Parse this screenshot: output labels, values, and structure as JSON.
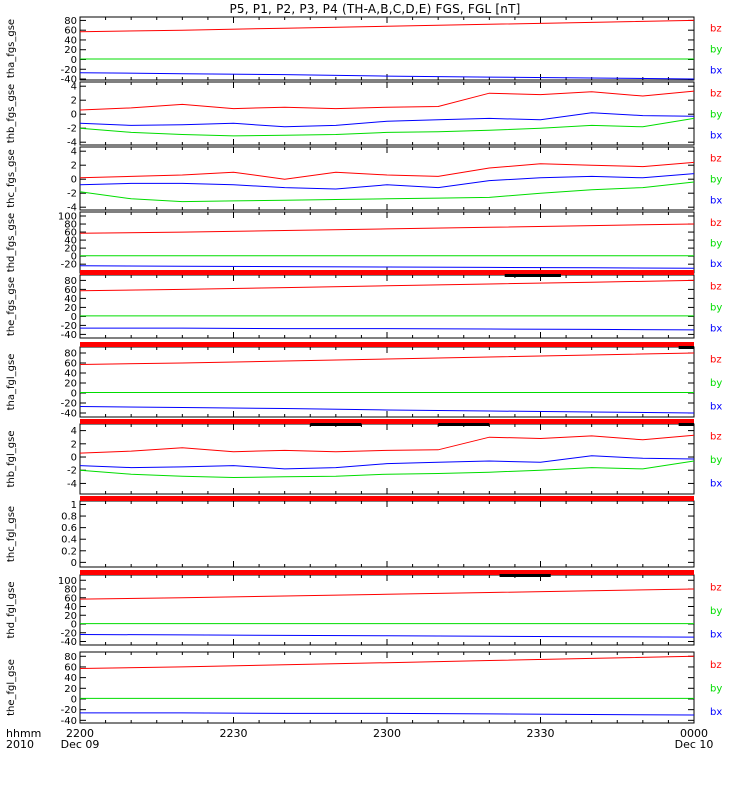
{
  "title": "P5, P1, P2, P3, P4 (TH-A,B,C,D,E) FGS, FGL [nT]",
  "colors": {
    "bz": "#ff0000",
    "by": "#00dd00",
    "bx": "#0000ff",
    "flag": "#ff0000",
    "bar": "#000000"
  },
  "time_axis": {
    "corner_labels": [
      "hhmm",
      "2010"
    ],
    "ticks": [
      {
        "t": 0,
        "label": "2200",
        "sub": "Dec 09"
      },
      {
        "t": 30,
        "label": "2230",
        "sub": ""
      },
      {
        "t": 60,
        "label": "2300",
        "sub": ""
      },
      {
        "t": 90,
        "label": "2330",
        "sub": ""
      },
      {
        "t": 120,
        "label": "0000",
        "sub": "Dec 10"
      }
    ],
    "range_minutes": [
      0,
      120
    ]
  },
  "chart_data": [
    {
      "type": "line",
      "ylabel": "tha_fgs_gse",
      "ylim": [
        -42,
        87
      ],
      "yticks": [
        80,
        60,
        40,
        20,
        0,
        -20,
        -40
      ],
      "series": [
        {
          "name": "bz",
          "x": [
            0,
            20,
            40,
            60,
            80,
            100,
            120
          ],
          "y": [
            57,
            60,
            64,
            68,
            72,
            76,
            80
          ]
        },
        {
          "name": "by",
          "x": [
            0,
            60,
            120
          ],
          "y": [
            1,
            1,
            1
          ]
        },
        {
          "name": "bx",
          "x": [
            0,
            20,
            40,
            60,
            80,
            100,
            120
          ],
          "y": [
            -27,
            -29,
            -31,
            -34,
            -36,
            -38,
            -40
          ]
        }
      ],
      "flags": [],
      "bars": []
    },
    {
      "type": "line",
      "ylabel": "thb_fgs_gse",
      "ylim": [
        -4.4,
        4.6
      ],
      "yticks": [
        4,
        2,
        0,
        -2,
        -4
      ],
      "series": [
        {
          "name": "bz",
          "x": [
            0,
            10,
            20,
            30,
            40,
            50,
            60,
            70,
            80,
            90,
            100,
            110,
            120
          ],
          "y": [
            0.6,
            0.9,
            1.4,
            0.8,
            1.0,
            0.8,
            1.0,
            1.1,
            3.0,
            2.8,
            3.2,
            2.6,
            3.3
          ]
        },
        {
          "name": "by",
          "x": [
            0,
            10,
            20,
            30,
            40,
            50,
            60,
            70,
            80,
            90,
            100,
            110,
            120
          ],
          "y": [
            -2.0,
            -2.6,
            -2.9,
            -3.1,
            -3.0,
            -2.9,
            -2.6,
            -2.5,
            -2.3,
            -2.0,
            -1.6,
            -1.8,
            -0.6
          ]
        },
        {
          "name": "bx",
          "x": [
            0,
            10,
            20,
            30,
            40,
            50,
            60,
            70,
            80,
            90,
            100,
            110,
            120
          ],
          "y": [
            -1.3,
            -1.6,
            -1.5,
            -1.3,
            -1.8,
            -1.6,
            -1.0,
            -0.8,
            -0.6,
            -0.8,
            0.2,
            -0.2,
            -0.3
          ]
        }
      ],
      "flags": [],
      "bars": []
    },
    {
      "type": "line",
      "ylabel": "thc_fgs_gse",
      "ylim": [
        -4.4,
        4.6
      ],
      "yticks": [
        4,
        2,
        0,
        -2,
        -4
      ],
      "series": [
        {
          "name": "bz",
          "x": [
            0,
            10,
            20,
            30,
            40,
            50,
            60,
            70,
            80,
            90,
            100,
            110,
            120
          ],
          "y": [
            0.2,
            0.4,
            0.6,
            1.0,
            0.0,
            1.0,
            0.6,
            0.4,
            1.6,
            2.2,
            2.0,
            1.8,
            2.4
          ]
        },
        {
          "name": "by",
          "x": [
            0,
            10,
            20,
            30,
            40,
            50,
            60,
            70,
            80,
            90,
            100,
            110,
            120
          ],
          "y": [
            -1.8,
            -2.8,
            -3.2,
            -3.1,
            -3.0,
            -2.9,
            -2.8,
            -2.7,
            -2.6,
            -2.0,
            -1.5,
            -1.2,
            -0.4
          ]
        },
        {
          "name": "bx",
          "x": [
            0,
            10,
            20,
            30,
            40,
            50,
            60,
            70,
            80,
            90,
            100,
            110,
            120
          ],
          "y": [
            -0.8,
            -0.6,
            -0.6,
            -0.8,
            -1.2,
            -1.4,
            -0.8,
            -1.2,
            -0.2,
            0.2,
            0.4,
            0.2,
            0.8
          ]
        }
      ],
      "flags": [],
      "bars": []
    },
    {
      "type": "line",
      "ylabel": "thd_fgs_gse",
      "ylim": [
        -42,
        110
      ],
      "yticks": [
        100,
        80,
        60,
        40,
        20,
        0,
        -20
      ],
      "series": [
        {
          "name": "bz",
          "x": [
            0,
            20,
            40,
            60,
            80,
            100,
            120
          ],
          "y": [
            57,
            60,
            64,
            68,
            72,
            76,
            80
          ]
        },
        {
          "name": "by",
          "x": [
            0,
            60,
            120
          ],
          "y": [
            1,
            1,
            1
          ]
        },
        {
          "name": "bx",
          "x": [
            0,
            20,
            40,
            60,
            80,
            100,
            120
          ],
          "y": [
            -24,
            -25,
            -26,
            -27,
            -28,
            -29,
            -30
          ]
        }
      ],
      "flags": [],
      "bars": []
    },
    {
      "type": "line",
      "ylabel": "the_fgs_gse",
      "ylim": [
        -48,
        92
      ],
      "yticks": [
        80,
        60,
        40,
        20,
        0,
        -20,
        -40
      ],
      "series": [
        {
          "name": "bz",
          "x": [
            0,
            20,
            40,
            60,
            80,
            100,
            120
          ],
          "y": [
            57,
            60,
            64,
            68,
            72,
            76,
            80
          ]
        },
        {
          "name": "by",
          "x": [
            0,
            60,
            120
          ],
          "y": [
            1,
            1,
            1
          ]
        },
        {
          "name": "bx",
          "x": [
            0,
            20,
            40,
            60,
            80,
            100,
            120
          ],
          "y": [
            -26,
            -26,
            -27,
            -27,
            -28,
            -29,
            -30
          ]
        }
      ],
      "flags": [
        [
          0,
          120
        ]
      ],
      "bars": [
        [
          83,
          94
        ]
      ]
    },
    {
      "type": "line",
      "ylabel": "tha_fgl_gse",
      "ylim": [
        -48,
        92
      ],
      "yticks": [
        80,
        60,
        40,
        20,
        0,
        -20,
        -40
      ],
      "series": [
        {
          "name": "bz",
          "x": [
            0,
            20,
            40,
            60,
            80,
            100,
            120
          ],
          "y": [
            57,
            60,
            64,
            68,
            72,
            76,
            80
          ]
        },
        {
          "name": "by",
          "x": [
            0,
            60,
            120
          ],
          "y": [
            1,
            1,
            1
          ]
        },
        {
          "name": "bx",
          "x": [
            0,
            20,
            40,
            60,
            80,
            100,
            120
          ],
          "y": [
            -27,
            -29,
            -31,
            -34,
            -36,
            -38,
            -40
          ]
        }
      ],
      "flags": [
        [
          0,
          120
        ]
      ],
      "bars": [
        [
          117,
          120
        ]
      ]
    },
    {
      "type": "line",
      "ylabel": "thb_fgl_gse",
      "ylim": [
        -5.6,
        5.0
      ],
      "yticks": [
        4,
        2,
        0,
        -2,
        -4
      ],
      "series": [
        {
          "name": "bz",
          "x": [
            0,
            10,
            20,
            30,
            40,
            50,
            60,
            70,
            80,
            90,
            100,
            110,
            120
          ],
          "y": [
            0.6,
            0.9,
            1.4,
            0.8,
            1.0,
            0.8,
            1.0,
            1.1,
            3.0,
            2.8,
            3.2,
            2.6,
            3.3
          ]
        },
        {
          "name": "by",
          "x": [
            0,
            10,
            20,
            30,
            40,
            50,
            60,
            70,
            80,
            90,
            100,
            110,
            120
          ],
          "y": [
            -2.0,
            -2.6,
            -2.9,
            -3.1,
            -3.0,
            -2.9,
            -2.6,
            -2.5,
            -2.3,
            -2.0,
            -1.6,
            -1.8,
            -0.6
          ]
        },
        {
          "name": "bx",
          "x": [
            0,
            10,
            20,
            30,
            40,
            50,
            60,
            70,
            80,
            90,
            100,
            110,
            120
          ],
          "y": [
            -1.3,
            -1.6,
            -1.5,
            -1.3,
            -1.8,
            -1.6,
            -1.0,
            -0.8,
            -0.6,
            -0.8,
            0.2,
            -0.2,
            -0.3
          ]
        }
      ],
      "flags": [
        [
          0,
          120
        ]
      ],
      "bars": [
        [
          45,
          55
        ],
        [
          70,
          80
        ],
        [
          117,
          120
        ]
      ]
    },
    {
      "type": "line",
      "ylabel": "thc_fgl_gse",
      "ylim": [
        -0.08,
        1.06
      ],
      "yticks": [
        1.0,
        0.8,
        0.6,
        0.4,
        0.2,
        0.0
      ],
      "series": [],
      "flags": [
        [
          0,
          120
        ]
      ],
      "bars": []
    },
    {
      "type": "line",
      "ylabel": "thd_fgl_gse",
      "ylim": [
        -48,
        112
      ],
      "yticks": [
        100,
        80,
        60,
        40,
        20,
        0,
        -20,
        -40
      ],
      "series": [
        {
          "name": "bz",
          "x": [
            0,
            20,
            40,
            60,
            80,
            100,
            120
          ],
          "y": [
            57,
            60,
            64,
            68,
            72,
            76,
            80
          ]
        },
        {
          "name": "by",
          "x": [
            0,
            60,
            120
          ],
          "y": [
            1,
            1,
            1
          ]
        },
        {
          "name": "bx",
          "x": [
            0,
            20,
            40,
            60,
            80,
            100,
            120
          ],
          "y": [
            -24,
            -25,
            -26,
            -27,
            -28,
            -29,
            -30
          ]
        }
      ],
      "flags": [
        [
          0,
          120
        ]
      ],
      "bars": [
        [
          82,
          92
        ]
      ]
    },
    {
      "type": "line",
      "ylabel": "the_fgl_gse",
      "ylim": [
        -45,
        88
      ],
      "yticks": [
        80,
        60,
        40,
        20,
        0,
        -20,
        -40
      ],
      "series": [
        {
          "name": "bz",
          "x": [
            0,
            20,
            40,
            60,
            80,
            100,
            120
          ],
          "y": [
            57,
            60,
            64,
            68,
            72,
            76,
            80
          ]
        },
        {
          "name": "by",
          "x": [
            0,
            60,
            120
          ],
          "y": [
            1,
            1,
            1
          ]
        },
        {
          "name": "bx",
          "x": [
            0,
            20,
            40,
            60,
            80,
            100,
            120
          ],
          "y": [
            -26,
            -26,
            -27,
            -27,
            -28,
            -29,
            -30
          ]
        }
      ],
      "flags": [],
      "bars": []
    }
  ]
}
